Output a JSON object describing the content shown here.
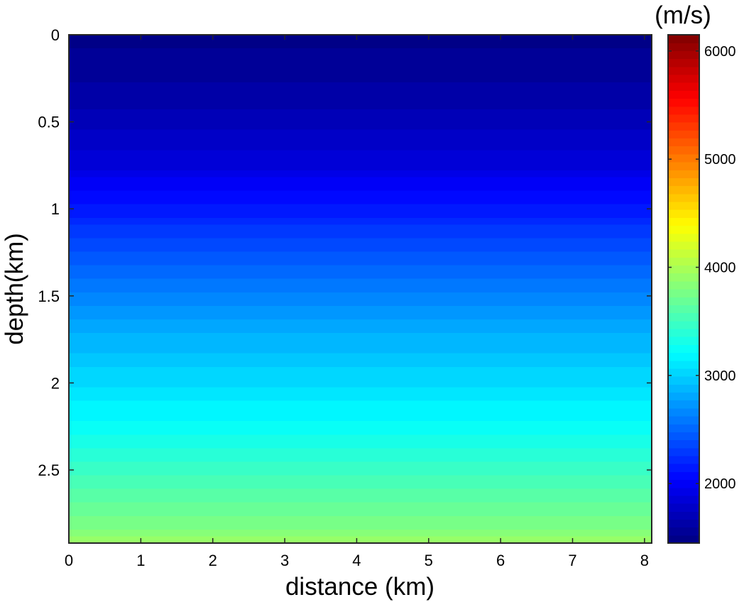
{
  "chart_data": {
    "type": "heatmap",
    "xlabel": "distance (km)",
    "ylabel": "depth(km)",
    "colorbar_label": "(m/s)",
    "xlim": [
      0,
      8.1
    ],
    "ylim": [
      0,
      2.92
    ],
    "y_reversed": true,
    "x_ticks": [
      "0",
      "1",
      "2",
      "3",
      "4",
      "5",
      "6",
      "7",
      "8"
    ],
    "y_ticks": [
      "0",
      "0.5",
      "1",
      "1.5",
      "2",
      "2.5"
    ],
    "colorbar_ticks": [
      "2000",
      "3000",
      "4000",
      "5000",
      "6000"
    ],
    "clim": [
      1450,
      6150
    ],
    "colormap": "jet",
    "grid": false,
    "velocity_profile": {
      "depth_km": [
        0,
        0.25,
        0.5,
        0.75,
        1.0,
        1.25,
        1.5,
        1.75,
        2.0,
        2.25,
        2.5,
        2.75,
        2.92
      ],
      "velocity_ms": [
        1500,
        1580,
        1700,
        1880,
        2150,
        2400,
        2650,
        2870,
        3050,
        3250,
        3480,
        3720,
        3900
      ]
    }
  }
}
